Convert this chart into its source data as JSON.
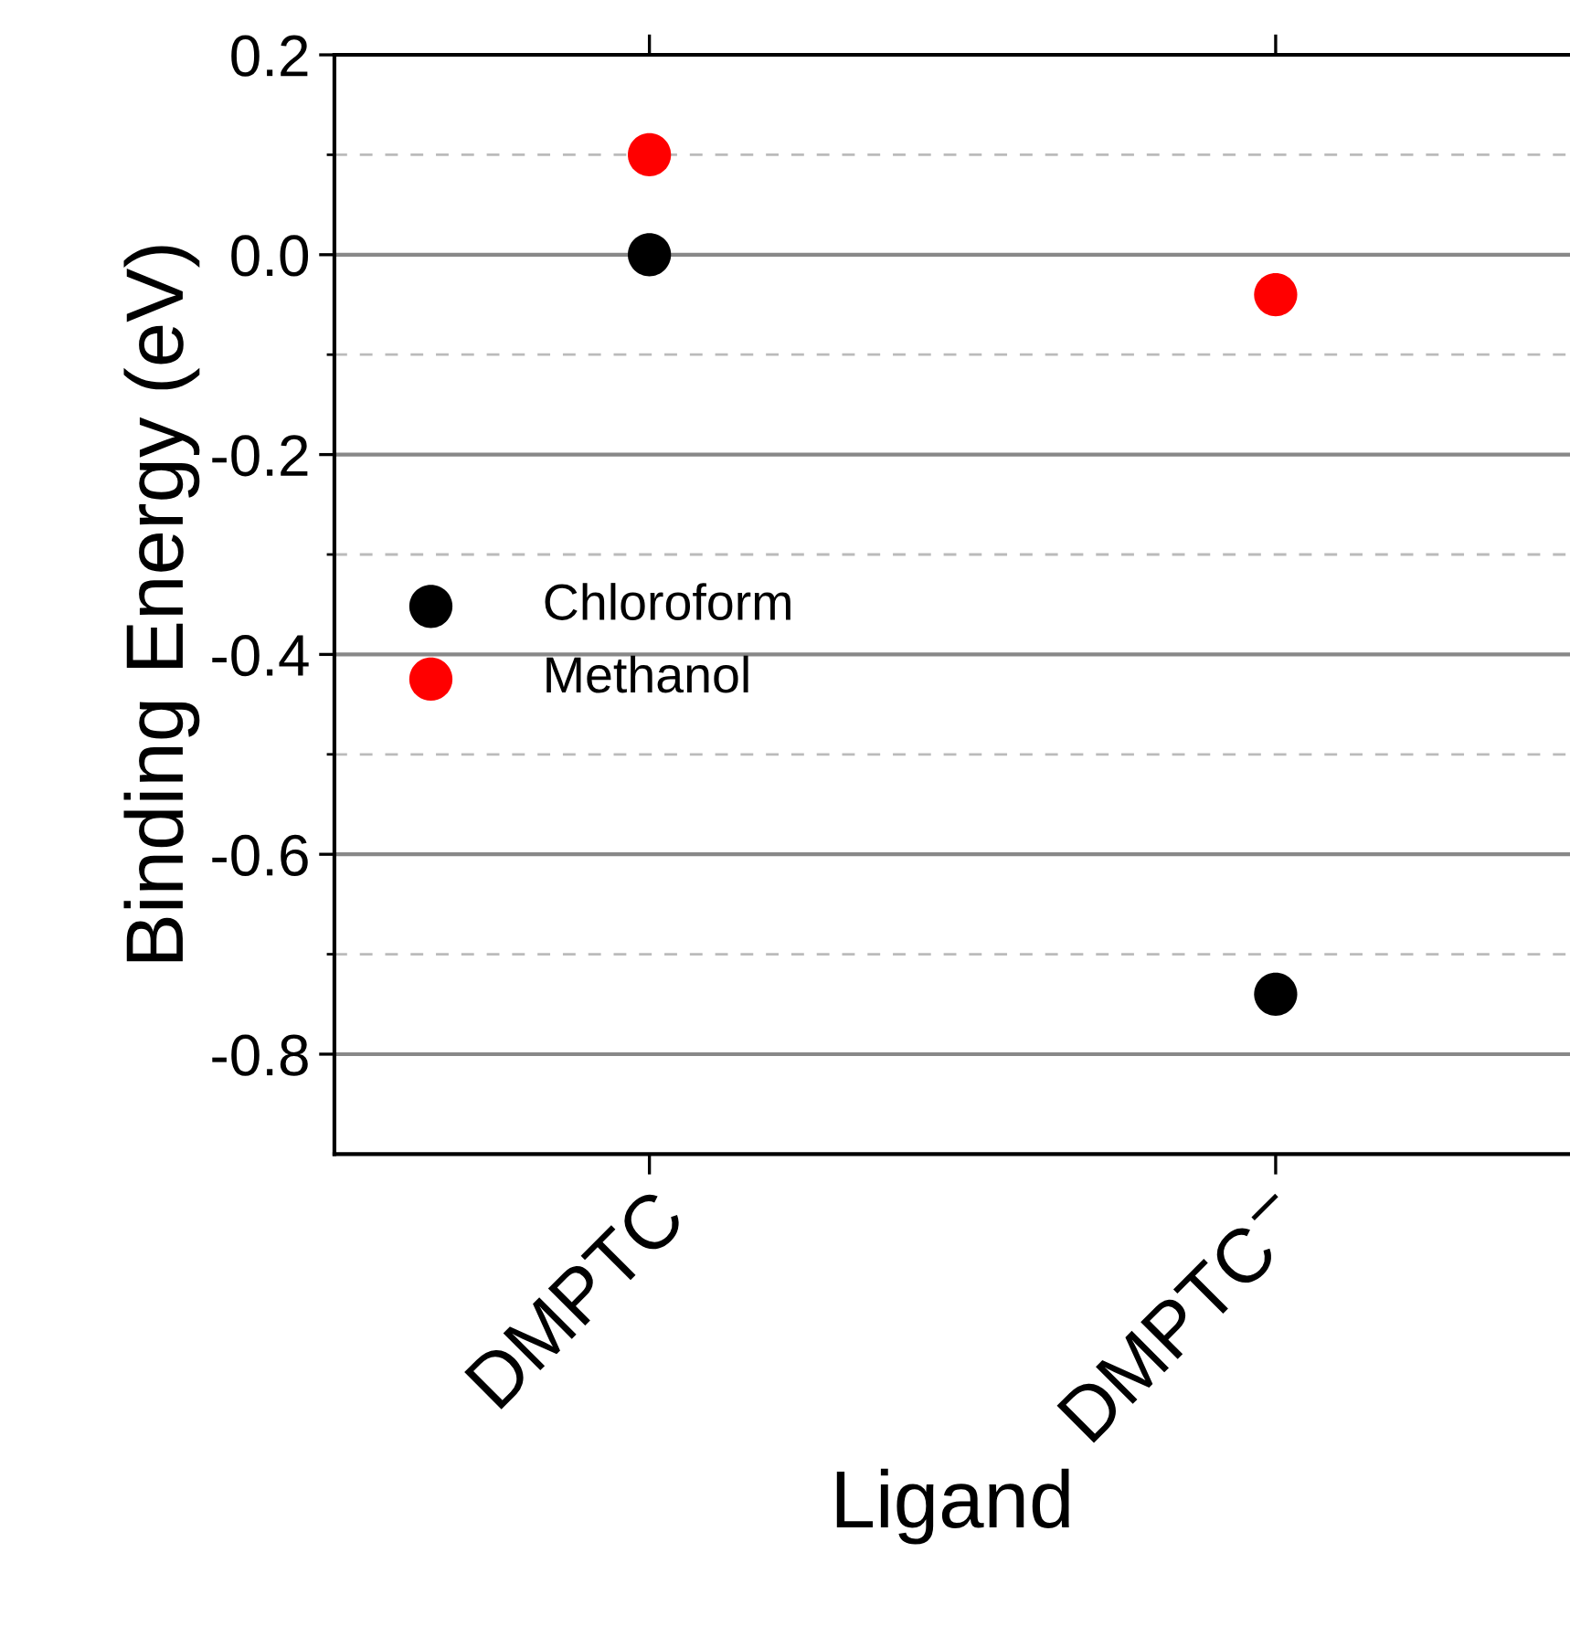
{
  "chart_data": {
    "type": "scatter",
    "xlabel": "Ligand",
    "ylabel": "Binding Energy (eV)",
    "categories": [
      "DMPTC",
      "DMPTC$^{−}$"
    ],
    "series": [
      {
        "name": "Chloroform",
        "color": "#000000",
        "values": [
          0.0,
          -0.74
        ]
      },
      {
        "name": "Methanol",
        "color": "#ff0000",
        "values": [
          0.1,
          -0.04
        ]
      }
    ],
    "ylim": [
      -0.9,
      0.2
    ],
    "yticks": [
      {
        "value": 0.2,
        "label": "0.2"
      },
      {
        "value": 0.1,
        "label": null
      },
      {
        "value": 0.0,
        "label": "0.0"
      },
      {
        "value": -0.1,
        "label": null
      },
      {
        "value": -0.2,
        "label": "-0.2"
      },
      {
        "value": -0.3,
        "label": null
      },
      {
        "value": -0.4,
        "label": "-0.4"
      },
      {
        "value": -0.5,
        "label": null
      },
      {
        "value": -0.6,
        "label": "-0.6"
      },
      {
        "value": -0.7,
        "label": null
      },
      {
        "value": -0.8,
        "label": "-0.8"
      }
    ],
    "grid": "y",
    "legend": "center left",
    "marker": "circle"
  }
}
